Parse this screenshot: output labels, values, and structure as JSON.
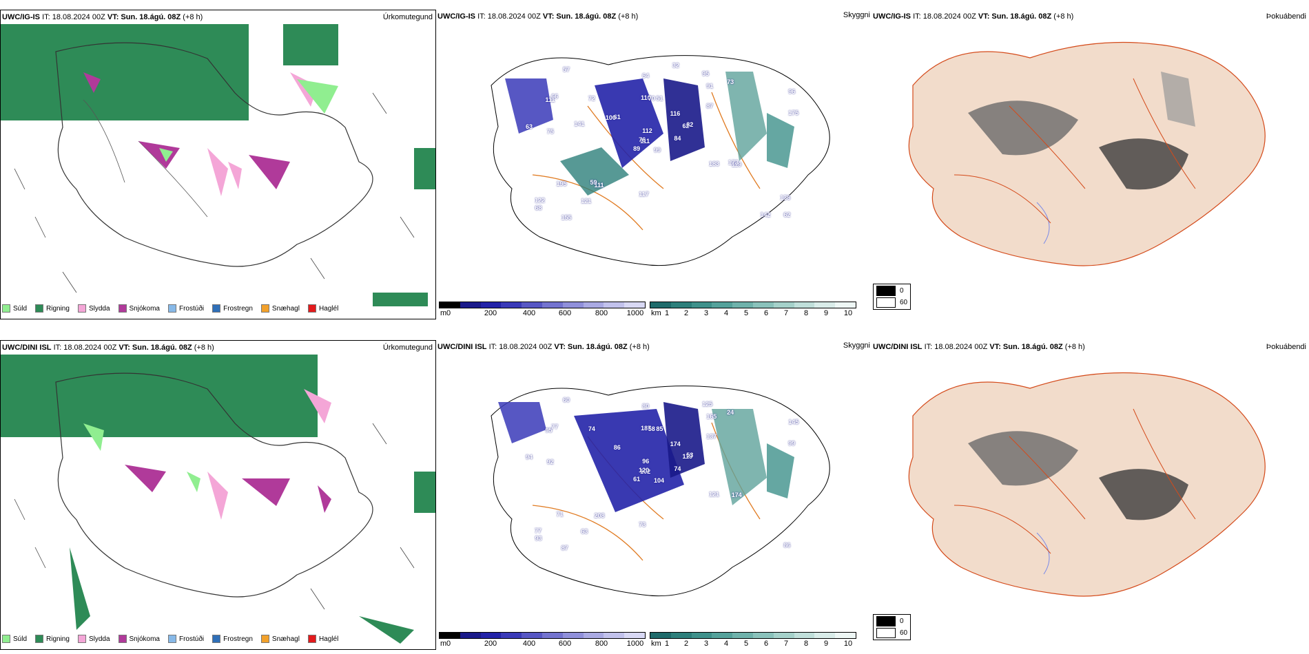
{
  "top": {
    "model_bold": "UWC/IG-IS",
    "it_text": "IT: 18.08.2024 00Z",
    "vt_label": "VT:",
    "vt_value": "Sun. 18.ágú. 08Z",
    "lead": "(+8 h)"
  },
  "bottom": {
    "model_bold": "UWC/DINI ISL",
    "it_text": "IT: 18.08.2024 00Z",
    "vt_label": "VT:",
    "vt_value": "Sun. 18.ágú. 08Z",
    "lead": "(+8 h)"
  },
  "panel_titles": {
    "precip": "Úrkomutegund",
    "cloud": "Skyggni",
    "fog": "Þokuábendi"
  },
  "precip_legend": [
    {
      "label": "Súld",
      "color": "#90ee90"
    },
    {
      "label": "Rigning",
      "color": "#2e8b57"
    },
    {
      "label": "Slydda",
      "color": "#f4a6d7"
    },
    {
      "label": "Snjókoma",
      "color": "#b03a9a"
    },
    {
      "label": "Frostúði",
      "color": "#87b9e8"
    },
    {
      "label": "Frostregn",
      "color": "#2f6fb8"
    },
    {
      "label": "Snæhagl",
      "color": "#f2a12b"
    },
    {
      "label": "Haglél",
      "color": "#e31a1c"
    }
  ],
  "cloudbase_bar": {
    "unit": "m",
    "ticks": [
      "0",
      "200",
      "400",
      "600",
      "800",
      "1000"
    ],
    "colors": [
      "#000000",
      "#1a1a8a",
      "#2323a8",
      "#3a3ab8",
      "#5757c4",
      "#7474cf",
      "#9090da",
      "#aaaae3",
      "#c2c2ec",
      "#d8d8f4"
    ]
  },
  "visibility_bar": {
    "unit": "km",
    "ticks": [
      "1",
      "2",
      "3",
      "4",
      "5",
      "6",
      "7",
      "8",
      "9",
      "10"
    ],
    "colors": [
      "#1f6b6b",
      "#2d7f7b",
      "#3f918b",
      "#55a29b",
      "#6fb2ab",
      "#8ac2bb",
      "#a5d1ca",
      "#c0dfda",
      "#d9ece9",
      "#eef7f5"
    ]
  },
  "fog_key": [
    {
      "label": "0",
      "color": "#000000"
    },
    {
      "label": "60",
      "color": "#ffffff"
    }
  ],
  "map_labels_top": [
    "99",
    "111",
    "111",
    "122",
    "62",
    "111",
    "95",
    "51",
    "91",
    "84",
    "57",
    "62",
    "75",
    "96",
    "89",
    "87",
    "155",
    "110",
    "116",
    "195",
    "61",
    "68",
    "121",
    "70",
    "82",
    "119",
    "66",
    "64",
    "63",
    "183",
    "175",
    "76",
    "117",
    "112",
    "72",
    "73",
    "59",
    "142",
    "136",
    "173",
    "32",
    "100",
    "141"
  ],
  "map_labels_bottom": [
    "104",
    "95",
    "102",
    "77",
    "113",
    "208",
    "125",
    "85",
    "165",
    "74",
    "60",
    "86",
    "92",
    "145",
    "61",
    "137",
    "87",
    "187",
    "174",
    "71",
    "86",
    "93",
    "63",
    "58",
    "53",
    "174",
    "77",
    "80",
    "94",
    "121",
    "99",
    "120",
    "73",
    "96",
    "74",
    "24"
  ]
}
